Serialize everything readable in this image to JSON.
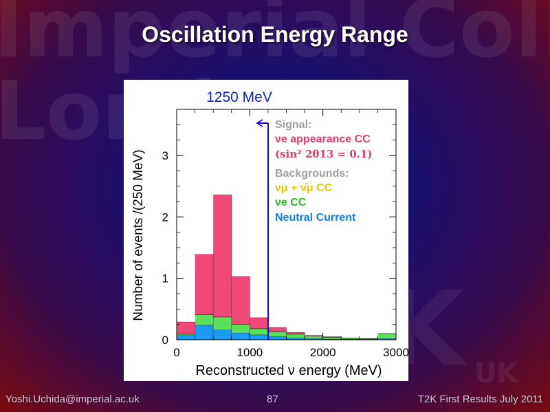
{
  "background_watermark": {
    "line1": "Imperial College",
    "line2": "London",
    "t2k_mark": "K",
    "t2k_sub": "UK"
  },
  "slide": {
    "title": "Oscillation Energy Range"
  },
  "footer": {
    "left": "Yoshi.Uchida@imperial.ac.uk",
    "center": "87",
    "right": "T2K First Results July 2011"
  },
  "chart_data": {
    "type": "bar",
    "subtype": "stacked-histogram",
    "title": "1250 MeV",
    "xlabel": "Reconstructed ν energy (MeV)",
    "ylabel": "Number of events /(250 MeV)",
    "xlim": [
      0,
      3000
    ],
    "ylim": [
      0,
      3.75
    ],
    "x_ticks": [
      0,
      1000,
      2000,
      3000
    ],
    "y_ticks": [
      0,
      1,
      2,
      3
    ],
    "bin_edges": [
      0,
      250,
      500,
      750,
      1000,
      1250,
      1500,
      1750,
      2000,
      2250,
      2500,
      2750,
      3000
    ],
    "series": [
      {
        "name": "Neutral Current",
        "color": "#1a9af0",
        "values": [
          0.07,
          0.24,
          0.16,
          0.11,
          0.08,
          0.05,
          0.03,
          0.02,
          0.01,
          0.01,
          0.01,
          0.02
        ]
      },
      {
        "name": "νe CC",
        "color": "#5ce05c",
        "values": [
          0.02,
          0.17,
          0.21,
          0.14,
          0.1,
          0.08,
          0.06,
          0.04,
          0.03,
          0.02,
          0.01,
          0.08
        ]
      },
      {
        "name": "νμ + ν̄μ CC",
        "color": "#f5d800",
        "values": [
          0.0,
          0.0,
          0.0,
          0.0,
          0.0,
          0.0,
          0.0,
          0.0,
          0.0,
          0.0,
          0.0,
          0.0
        ]
      },
      {
        "name": "νe appearance CC",
        "color": "#f04878",
        "values": [
          0.2,
          0.98,
          1.99,
          0.78,
          0.18,
          0.07,
          0.03,
          0.01,
          0.01,
          0.0,
          0.0,
          0.0
        ]
      }
    ],
    "marker": {
      "x": 1250,
      "label": "1250 MeV",
      "color": "#0000e0"
    },
    "legend": {
      "signal_header": "Signal:",
      "signal_entry": "νe appearance CC",
      "signal_note": "(sin² 2θ13 = 0.1)",
      "background_header": "Backgrounds:",
      "entries": [
        {
          "label": "νμ + ν̄μ CC",
          "color": "#e8c800"
        },
        {
          "label": "νe CC",
          "color": "#22c022"
        },
        {
          "label": "Neutral Current",
          "color": "#1080e8"
        }
      ]
    }
  }
}
